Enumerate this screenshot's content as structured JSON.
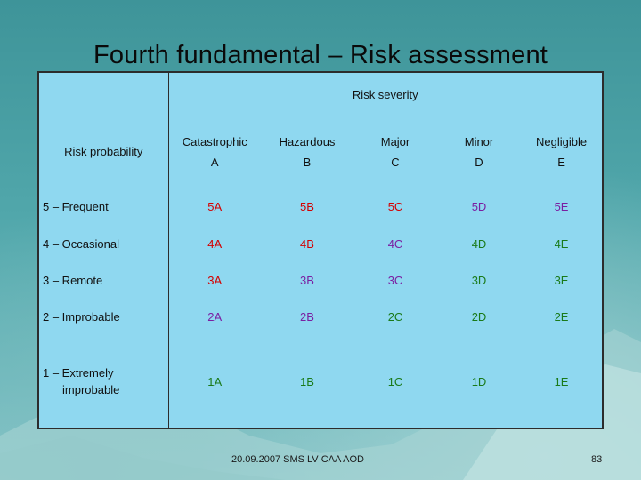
{
  "slide": {
    "title": "Fourth fundamental – Risk assessment",
    "footer": "20.09.2007 SMS LV CAA AOD",
    "page_number": "83"
  },
  "table": {
    "severity_header": "Risk severity",
    "probability_header": "Risk probability",
    "categories": [
      {
        "name": "Catastrophic",
        "code": "A"
      },
      {
        "name": "Hazardous",
        "code": "B"
      },
      {
        "name": "Major",
        "code": "C"
      },
      {
        "name": "Minor",
        "code": "D"
      },
      {
        "name": "Negligible",
        "code": "E"
      }
    ],
    "rows": [
      {
        "label": "5 – Frequent",
        "cells": [
          "5A",
          "5B",
          "5C",
          "5D",
          "5E"
        ]
      },
      {
        "label": "4 – Occasional",
        "cells": [
          "4A",
          "4B",
          "4C",
          "4D",
          "4E"
        ]
      },
      {
        "label": "3 – Remote",
        "cells": [
          "3A",
          "3B",
          "3C",
          "3D",
          "3E"
        ]
      },
      {
        "label": "2 – Improbable",
        "cells": [
          "2A",
          "2B",
          "2C",
          "2D",
          "2E"
        ]
      },
      {
        "label_line1": "1 – Extremely",
        "label_line2": "improbable",
        "cells": [
          "1A",
          "1B",
          "1C",
          "1D",
          "1E"
        ]
      }
    ],
    "cell_colors": {
      "5A": "#d40000",
      "5B": "#d40000",
      "5C": "#d40000",
      "5D": "#7a1fa2",
      "5E": "#7a1fa2",
      "4A": "#d40000",
      "4B": "#d40000",
      "4C": "#7a1fa2",
      "4D": "#1a7a1a",
      "4E": "#1a7a1a",
      "3A": "#d40000",
      "3B": "#7a1fa2",
      "3C": "#7a1fa2",
      "3D": "#1a7a1a",
      "3E": "#1a7a1a",
      "2A": "#7a1fa2",
      "2B": "#7a1fa2",
      "2C": "#1a7a1a",
      "2D": "#1a7a1a",
      "2E": "#1a7a1a",
      "1A": "#1a7a1a",
      "1B": "#1a7a1a",
      "1C": "#1a7a1a",
      "1D": "#1a7a1a",
      "1E": "#1a7a1a"
    }
  }
}
